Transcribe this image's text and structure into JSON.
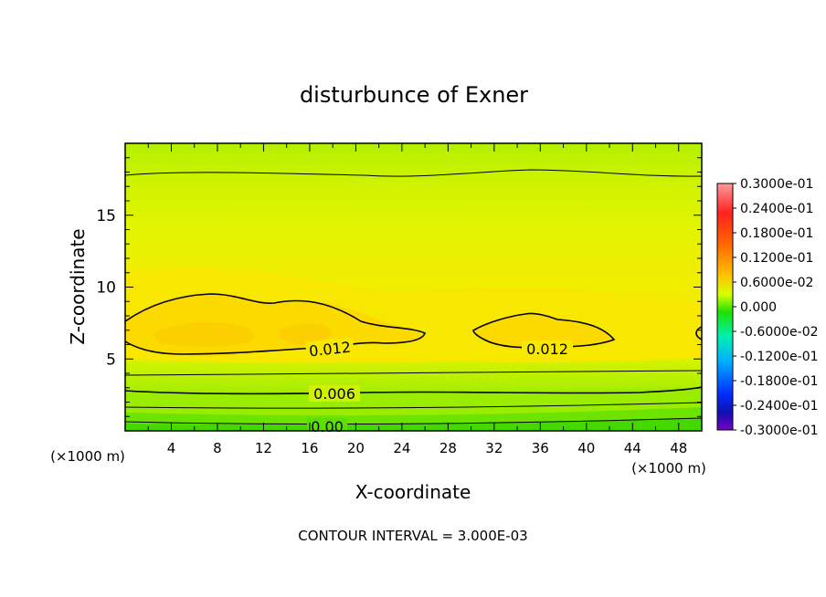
{
  "chart_data": {
    "type": "heatmap",
    "title": "disturbunce of Exner",
    "xlabel": "X-coordinate",
    "ylabel": "Z-coordinate",
    "x_unit": "(×1000 m)",
    "y_unit": "(×1000 m)",
    "xlim": [
      0,
      50
    ],
    "ylim": [
      0,
      20
    ],
    "x_ticks": [
      "4",
      "8",
      "12",
      "16",
      "20",
      "24",
      "28",
      "32",
      "36",
      "40",
      "44",
      "48"
    ],
    "y_ticks": [
      "5",
      "10",
      "15"
    ],
    "footer": "CONTOUR INTERVAL = 3.000E-03",
    "contour_labels": [
      "0.012",
      "0.012",
      "0.006",
      "0.00"
    ],
    "colorbar": {
      "labels": [
        "0.3000e-01",
        "0.2400e-01",
        "0.1800e-01",
        "0.1200e-01",
        "0.6000e-02",
        "0.000",
        "-0.6000e-02",
        "-0.1200e-01",
        "-0.1800e-01",
        "-0.2400e-01",
        "-0.3000e-01"
      ],
      "colors": [
        "#ff8a8a",
        "#ff1a1a",
        "#ff7000",
        "#ffaa00",
        "#d8ff00",
        "#22e000",
        "#00f0a0",
        "#00c8ff",
        "#0050ff",
        "#1010c0",
        "#7a00c8"
      ]
    },
    "field_colors": {
      "high": "#fcd200",
      "mid_high": "#f4ec00",
      "mid": "#e4f600",
      "low": "#bef000",
      "lower": "#96ec00",
      "lowest": "#60e000"
    }
  }
}
